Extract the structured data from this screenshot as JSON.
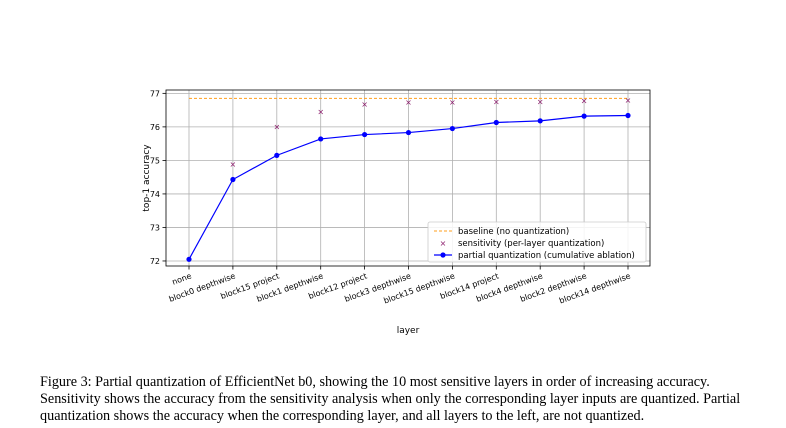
{
  "chart_data": {
    "type": "line",
    "xlabel": "layer",
    "ylabel": "top-1 accuracy",
    "ylim": [
      71.85,
      77.1
    ],
    "yticks": [
      72,
      73,
      74,
      75,
      76,
      77
    ],
    "grid": true,
    "legend_position": "lower-right",
    "categories": [
      "none",
      "block0 depthwise",
      "block15 project",
      "block1 depthwise",
      "block12 project",
      "block3 depthwise",
      "block15 depthwise",
      "block14 project",
      "block4 depthwise",
      "block2 depthwise",
      "block14 depthwise"
    ],
    "series": [
      {
        "name": "baseline (no quantization)",
        "style": "dashed-line",
        "color": "#ff9f1c",
        "value": 76.85
      },
      {
        "name": "sensitivity (per-layer quantization)",
        "style": "x-markers",
        "color": "#8b1a6b",
        "values": [
          null,
          74.88,
          76.0,
          76.45,
          76.68,
          76.73,
          76.73,
          76.75,
          76.75,
          76.78,
          76.8
        ]
      },
      {
        "name": "partial quantization (cumulative ablation)",
        "style": "line-dots",
        "color": "#0000ff",
        "values": [
          72.05,
          74.43,
          75.15,
          75.64,
          75.77,
          75.83,
          75.95,
          76.13,
          76.18,
          76.32,
          76.34
        ]
      }
    ]
  },
  "caption": {
    "text": "Figure 3: Partial quantization of EfficientNet b0, showing the 10 most sensitive layers in order of increasing accuracy. Sensitivity shows the accuracy from the sensitivity analysis when only the corresponding layer inputs are quantized. Partial quantization shows the accuracy when the corresponding layer, and all layers to the left, are not quantized."
  }
}
